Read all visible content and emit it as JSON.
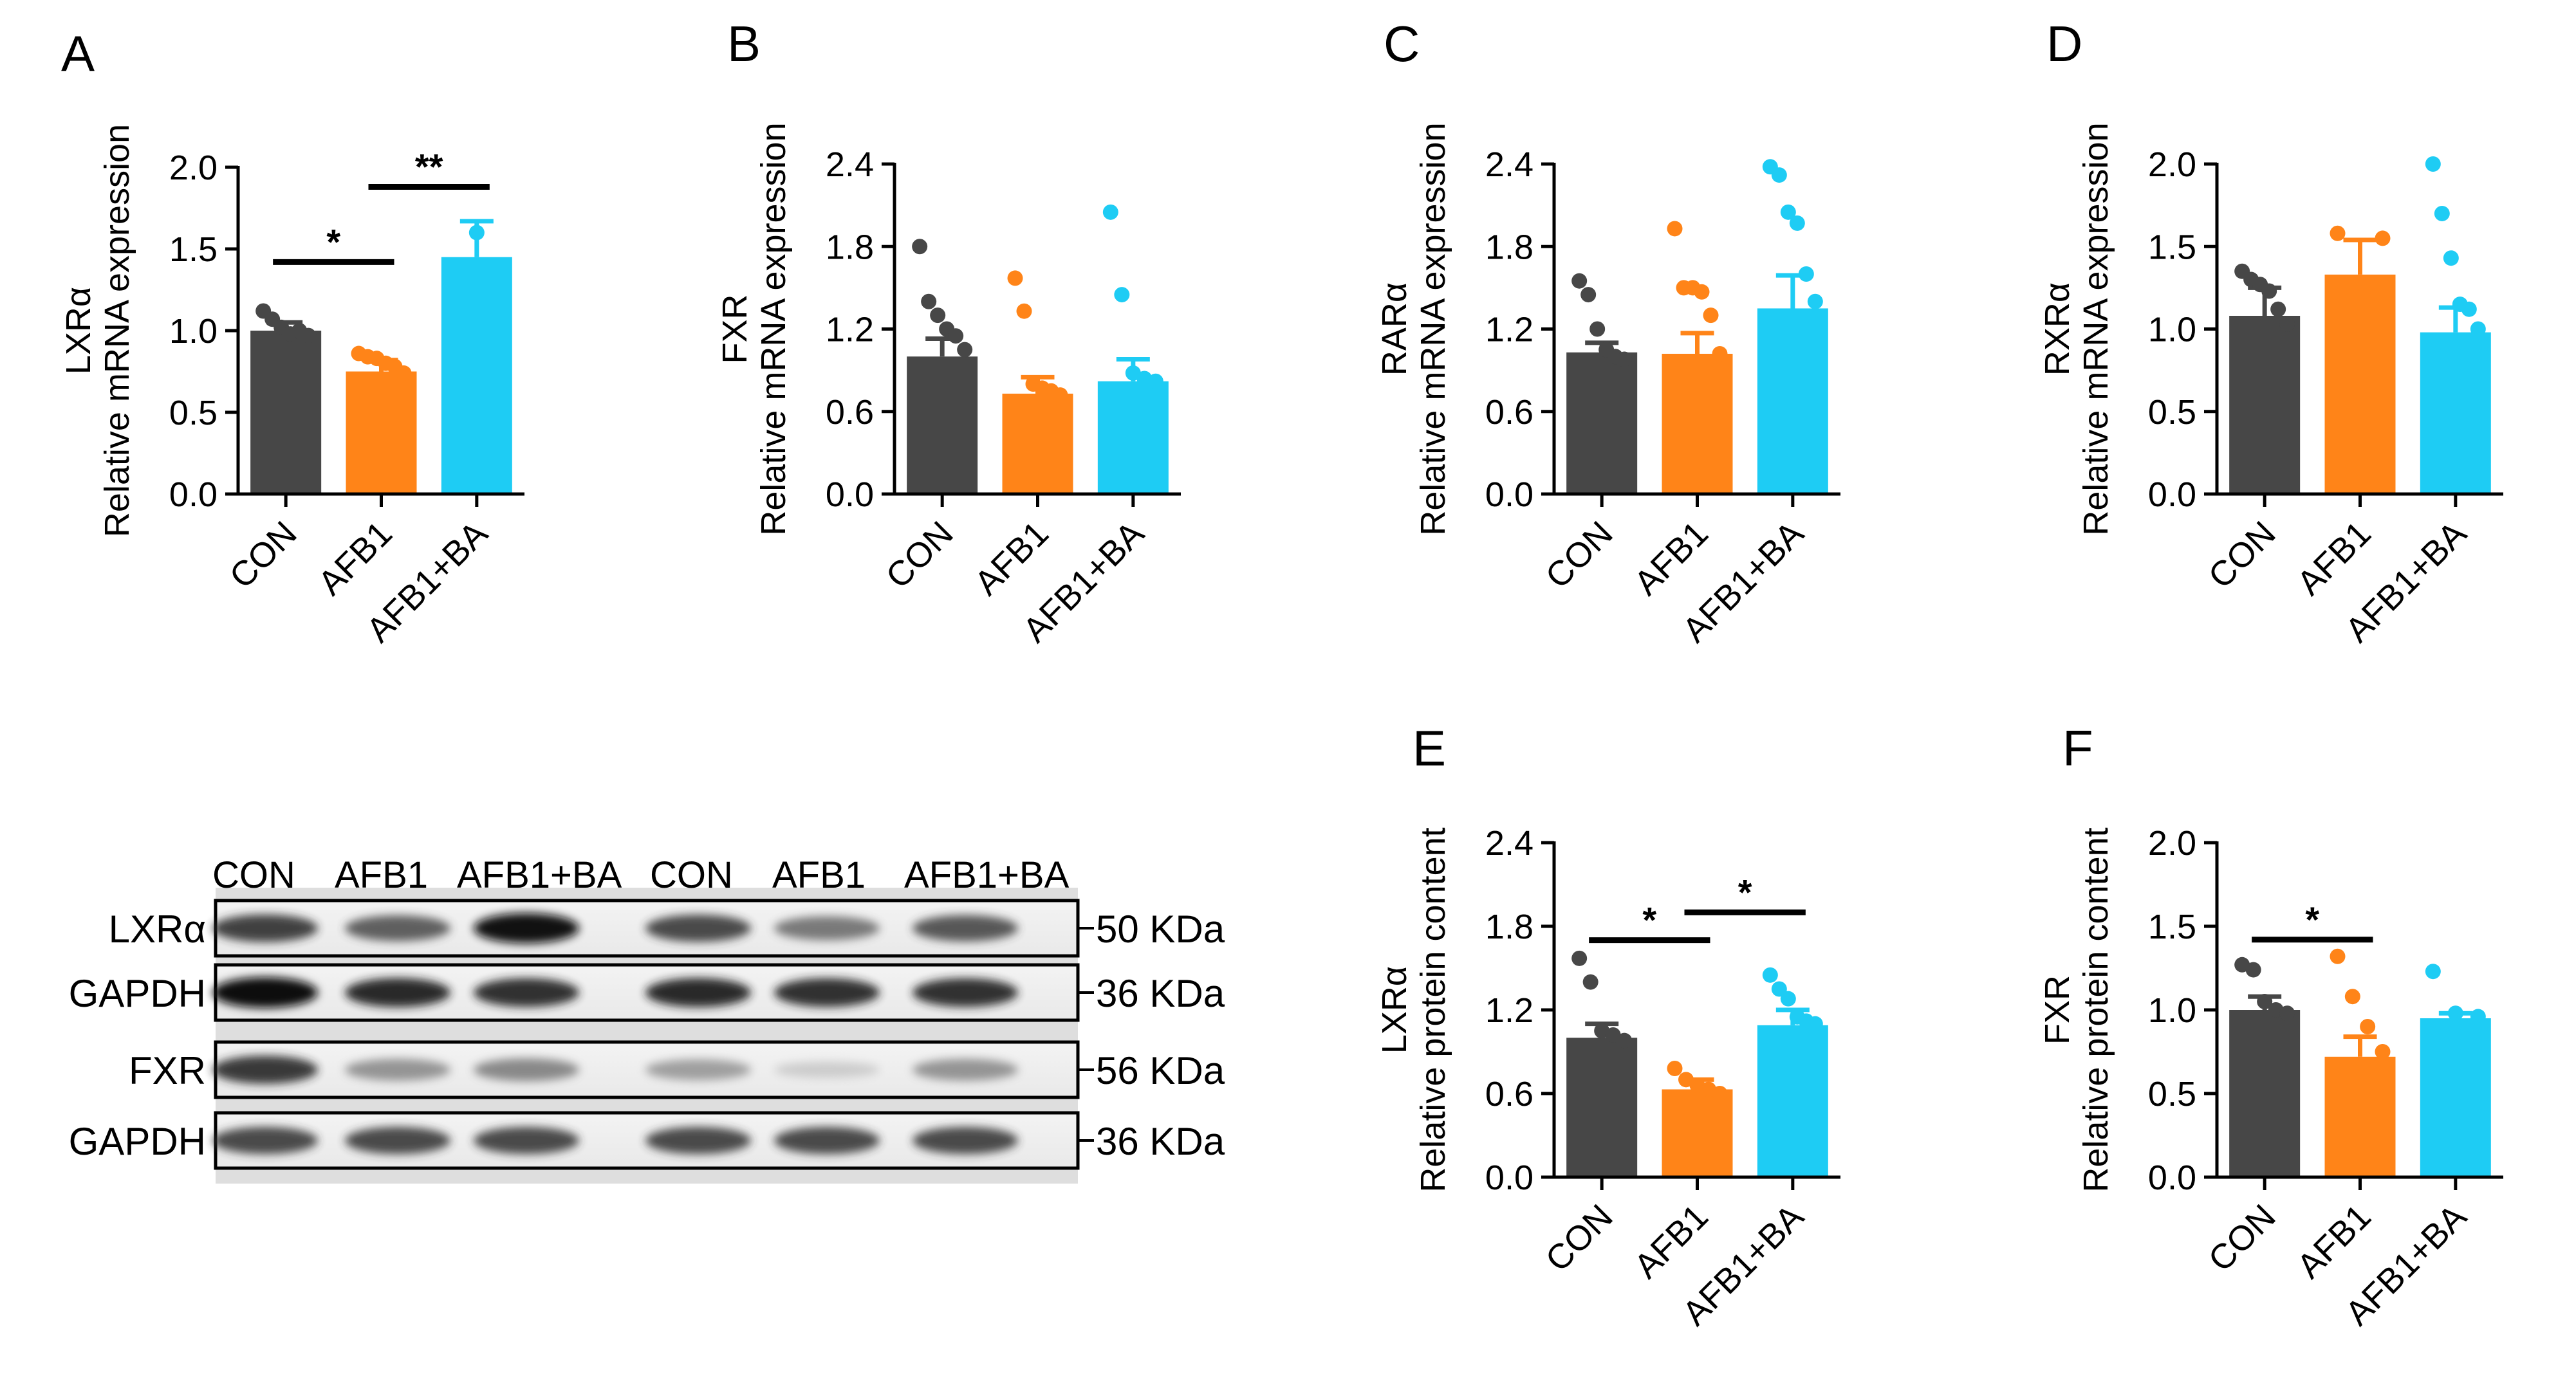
{
  "colors": {
    "CON": "#474747",
    "AFB1": "#FF8418",
    "AFB1+BA": "#1ECCF4",
    "axis": "#000000"
  },
  "chart_data": [
    {
      "id": "A",
      "type": "bar",
      "panel_label": "A",
      "ylabel_top": "LXRα",
      "ylabel_bottom": "Relative mRNA  expression",
      "ylim": [
        0,
        2.0
      ],
      "yticks": [
        "0.0",
        "0.5",
        "1.0",
        "1.5",
        "2.0"
      ],
      "categories": [
        "CON",
        "AFB1",
        "AFB1+BA"
      ],
      "values": [
        1.0,
        0.75,
        1.45
      ],
      "errors": [
        0.05,
        0.07,
        0.22
      ],
      "points": [
        [
          1.12,
          1.07,
          1.02,
          0.98,
          1.0,
          0.97
        ],
        [
          0.86,
          0.84,
          0.83,
          0.8,
          0.78,
          0.74
        ],
        [
          1.6
        ]
      ],
      "significance": [
        {
          "from": 0,
          "to": 1,
          "label": "*",
          "level": 1.42
        },
        {
          "from": 1,
          "to": 2,
          "label": "**",
          "level": 1.88
        }
      ]
    },
    {
      "id": "B",
      "type": "bar",
      "panel_label": "B",
      "ylabel_top": "FXR",
      "ylabel_bottom": "Relative mRNA expression",
      "ylim": [
        0,
        2.4
      ],
      "yticks": [
        "0.0",
        "0.6",
        "1.2",
        "1.8",
        "2.4"
      ],
      "categories": [
        "CON",
        "AFB1",
        "AFB1+BA"
      ],
      "values": [
        1.0,
        0.73,
        0.82
      ],
      "errors": [
        0.13,
        0.12,
        0.16
      ],
      "points": [
        [
          1.8,
          1.4,
          1.3,
          1.2,
          1.15,
          1.05
        ],
        [
          1.57,
          1.33,
          0.8,
          0.77,
          0.75,
          0.72
        ],
        [
          2.05,
          1.45,
          0.88,
          0.84,
          0.82
        ]
      ],
      "significance": []
    },
    {
      "id": "C",
      "type": "bar",
      "panel_label": "C",
      "ylabel_top": "RARα",
      "ylabel_bottom": "Relative mRNA  expression",
      "ylim": [
        0,
        2.4
      ],
      "yticks": [
        "0.0",
        "0.6",
        "1.2",
        "1.8",
        "2.4"
      ],
      "categories": [
        "CON",
        "AFB1",
        "AFB1+BA"
      ],
      "values": [
        1.03,
        1.02,
        1.35
      ],
      "errors": [
        0.07,
        0.15,
        0.24
      ],
      "points": [
        [
          1.55,
          1.45,
          1.2,
          1.05,
          1.0,
          0.98
        ],
        [
          1.93,
          1.5,
          1.5,
          1.47,
          1.3,
          1.02
        ],
        [
          2.38,
          2.32,
          2.05,
          1.97,
          1.6,
          1.4
        ]
      ],
      "significance": []
    },
    {
      "id": "D",
      "type": "bar",
      "panel_label": "D",
      "ylabel_top": "RXRα",
      "ylabel_bottom": "Relative mRNA  expression",
      "ylim": [
        0,
        2.0
      ],
      "yticks": [
        "0.0",
        "0.5",
        "1.0",
        "1.5",
        "2.0"
      ],
      "categories": [
        "CON",
        "AFB1",
        "AFB1+BA"
      ],
      "values": [
        1.08,
        1.33,
        0.98
      ],
      "errors": [
        0.17,
        0.21,
        0.15
      ],
      "points": [
        [
          1.35,
          1.3,
          1.27,
          1.23,
          1.12,
          1.03
        ],
        [
          1.58,
          1.55
        ],
        [
          2.0,
          1.7,
          1.43,
          1.15,
          1.12,
          1.0
        ]
      ],
      "significance": []
    },
    {
      "id": "E",
      "type": "bar",
      "panel_label": "E",
      "ylabel_top": "LXRα",
      "ylabel_bottom": "Relative protein content",
      "ylim": [
        0,
        2.4
      ],
      "yticks": [
        "0.0",
        "0.6",
        "1.2",
        "1.8",
        "2.4"
      ],
      "categories": [
        "CON",
        "AFB1",
        "AFB1+BA"
      ],
      "values": [
        1.0,
        0.63,
        1.09
      ],
      "errors": [
        0.1,
        0.07,
        0.11
      ],
      "points": [
        [
          1.57,
          1.4,
          1.05,
          1.02,
          0.98
        ],
        [
          0.78,
          0.7,
          0.66,
          0.63,
          0.6
        ],
        [
          1.45,
          1.35,
          1.28,
          1.15,
          1.12,
          1.1
        ]
      ],
      "significance": [
        {
          "from": 0,
          "to": 1,
          "label": "*",
          "level": 1.7
        },
        {
          "from": 1,
          "to": 2,
          "label": "*",
          "level": 1.9
        }
      ]
    },
    {
      "id": "F",
      "type": "bar",
      "panel_label": "F",
      "ylabel_top": "FXR",
      "ylabel_bottom": "Relative protein content",
      "ylim": [
        0,
        2.0
      ],
      "yticks": [
        "0.0",
        "0.5",
        "1.0",
        "1.5",
        "2.0"
      ],
      "categories": [
        "CON",
        "AFB1",
        "AFB1+BA"
      ],
      "values": [
        1.0,
        0.72,
        0.95
      ],
      "errors": [
        0.08,
        0.12,
        0.03
      ],
      "points": [
        [
          1.27,
          1.24,
          1.05,
          1.0,
          0.98
        ],
        [
          1.32,
          1.08,
          0.9,
          0.75
        ],
        [
          1.23,
          0.98,
          0.96
        ]
      ],
      "significance": [
        {
          "from": 0,
          "to": 1,
          "label": "*",
          "level": 1.42
        }
      ]
    }
  ],
  "western_blot": {
    "lane_labels": [
      "CON",
      "AFB1",
      "AFB1+BA",
      "CON",
      "AFB1",
      "AFB1+BA"
    ],
    "rows": [
      {
        "name": "LXRα",
        "marker": "50 KDa",
        "intensity": [
          0.82,
          0.72,
          0.97,
          0.8,
          0.62,
          0.75
        ]
      },
      {
        "name": "GAPDH",
        "marker": "36 KDa",
        "intensity": [
          1.0,
          0.9,
          0.88,
          0.9,
          0.88,
          0.88
        ]
      },
      {
        "name": "FXR",
        "marker": "56 KDa",
        "intensity": [
          0.85,
          0.5,
          0.55,
          0.45,
          0.18,
          0.5
        ]
      },
      {
        "name": "GAPDH",
        "marker": "36 KDa",
        "intensity": [
          0.8,
          0.8,
          0.8,
          0.8,
          0.8,
          0.8
        ]
      }
    ]
  }
}
